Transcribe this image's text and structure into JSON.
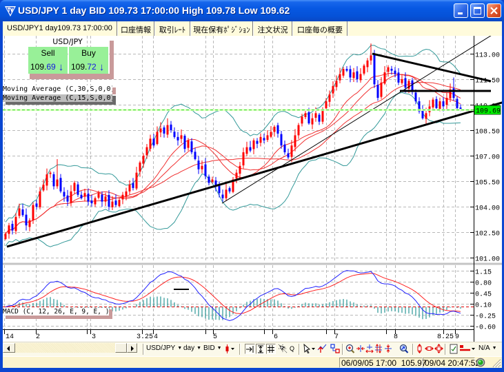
{
  "window": {
    "title": "USD/JPY 1 day BID 109.73 17:00:00 High 109.78 Low 109.62",
    "app_icon": "fx-logo-icon",
    "controls": [
      "minimize-icon",
      "maximize-icon",
      "close-icon"
    ]
  },
  "tabs": [
    {
      "label": "USD/JPY1 day109.73 17:00:00",
      "active": true
    },
    {
      "label": "口座情報",
      "active": false
    },
    {
      "label": "取引ﾚｰﾄ",
      "active": false
    },
    {
      "label": "現在保有ﾎﾟｼﾞｼｮﾝ",
      "active": false
    },
    {
      "label": "注文状況",
      "active": false
    },
    {
      "label": "口座毎の概要",
      "active": false
    }
  ],
  "quote_panel": {
    "symbol": "USD/JPY",
    "sell": {
      "label": "Sell",
      "price_big": "109.",
      "price_pips": "69",
      "arrow": "↓",
      "direction": "down"
    },
    "buy": {
      "label": "Buy",
      "price_big": "109.",
      "price_pips": "72",
      "arrow": "↓",
      "direction": "down"
    }
  },
  "legends": {
    "ma30": "Moving Average (C,30,S,0,0)",
    "ma15": "Moving Average (C,15,S,0,0)",
    "macd": "MACD (C, 12, 26, E, 9, E, )"
  },
  "price_axis": {
    "ticks": [
      "113.00",
      "111.50",
      "110.00",
      "108.50",
      "107.00",
      "105.50",
      "104.00",
      "102.50",
      "101.00"
    ],
    "current_price": "109.69"
  },
  "macd_axis": {
    "ticks": [
      "1.15",
      "0.80",
      "0.45",
      "0.10",
      "-0.25",
      "-0.60"
    ]
  },
  "time_axis": {
    "labels": [
      {
        "text": "14",
        "at": -0.2
      },
      {
        "text": "2",
        "at": 8.6
      },
      {
        "text": "3",
        "at": 24.8
      },
      {
        "text": "3.25",
        "at": 37.8
      },
      {
        "text": "4",
        "at": 42.8
      },
      {
        "text": "5",
        "at": 60
      },
      {
        "text": "6",
        "at": 77.6
      },
      {
        "text": "7",
        "at": 95.2
      },
      {
        "text": "8",
        "at": 112.4
      },
      {
        "text": "8.25",
        "at": 125
      },
      {
        "text": "9",
        "at": 130.2
      }
    ],
    "ticks": [
      -0.4,
      8.8,
      23.6,
      24.6,
      39.6,
      42.8,
      58,
      60.2,
      75,
      77.4,
      93,
      95.4,
      110.4,
      113,
      127,
      130.4
    ]
  },
  "toolbar": {
    "scroll_left_icon": "arrow-left-icon",
    "scroll_right_icon": "arrow-right-icon",
    "symbol_select": "USD/JPY",
    "timeframe_select": "day",
    "price_select": "BID",
    "chart_type_icon": "candlestick-icon",
    "quote_button": "Q",
    "na_select": "N/A",
    "caret": "▼"
  },
  "status_bar": {
    "bar_time": "06/09/05 17:00",
    "bar_price": "105.97",
    "clock": "09/04 20:47:52",
    "connection": "connected"
  },
  "colors": {
    "bull": "#ff0000",
    "bear": "#0000ff",
    "moving_average": "#f03030",
    "bollinger": "#339999",
    "macd": "#2020ff",
    "signal": "#ff2020",
    "histogram": "#3a9d9d",
    "grid": "#b8b8b8",
    "current_line": "#22dd22",
    "current_tag": "#00ee00",
    "trendline": "#000000",
    "zero_line": "#dd0000"
  },
  "chart_data": {
    "type": "candlestick",
    "title": "USD/JPY 1 day BID",
    "symbol": "USD/JPY",
    "timeframe": "1 day",
    "price_side": "BID",
    "last": {
      "bid": 109.73,
      "time": "17:00:00",
      "high": 109.78,
      "low": 109.62
    },
    "x_labels": [
      "14",
      "2",
      "3",
      "3.25",
      "4",
      "5",
      "6",
      "7",
      "8",
      "8.25",
      "9"
    ],
    "price_pane": {
      "ylim": [
        100.72,
        114.05
      ],
      "ticks": [
        113.0,
        111.5,
        110.0,
        108.5,
        107.0,
        105.5,
        104.0,
        102.5,
        101.0
      ],
      "grid": true
    },
    "candles": {
      "close": [
        102.4,
        102.9,
        102.6,
        103.4,
        103.9,
        103.5,
        102.9,
        103.2,
        104.1,
        104.0,
        104.9,
        105.3,
        105.9,
        106.0,
        105.2,
        105.6,
        104.9,
        104.6,
        104.3,
        104.9,
        105.4,
        104.7,
        104.5,
        104.8,
        104.3,
        104.2,
        104.5,
        104.8,
        104.3,
        104.6,
        104.0,
        104.3,
        104.1,
        104.4,
        104.7,
        104.9,
        105.3,
        105.1,
        106.0,
        106.6,
        107.0,
        107.5,
        108.0,
        107.6,
        108.4,
        108.6,
        108.3,
        108.8,
        108.5,
        108.1,
        107.9,
        108.2,
        107.4,
        107.9,
        107.2,
        106.8,
        106.2,
        106.4,
        105.8,
        105.4,
        105.6,
        105.2,
        104.8,
        104.5,
        105.0,
        104.9,
        105.6,
        106.0,
        106.4,
        107.2,
        107.5,
        107.3,
        107.9,
        107.7,
        108.1,
        107.9,
        108.2,
        108.4,
        108.7,
        108.3,
        107.6,
        107.2,
        106.9,
        107.6,
        108.2,
        108.8,
        109.3,
        109.5,
        108.9,
        109.2,
        109.5,
        109.0,
        109.7,
        110.2,
        110.6,
        111.1,
        111.4,
        111.8,
        112.1,
        112.0,
        111.6,
        111.9,
        111.5,
        111.8,
        112.3,
        112.6,
        112.9,
        111.2,
        110.4,
        111.3,
        111.9,
        112.2,
        112.0,
        111.8,
        111.3,
        111.5,
        111.0,
        111.4,
        110.8,
        110.2,
        109.6,
        109.2,
        109.5,
        109.9,
        110.3,
        109.8,
        110.2,
        109.9,
        110.4,
        110.9,
        110.4,
        109.8,
        109.7
      ],
      "high_overrides": {
        "15": 106.8,
        "47": 109.2,
        "106": 113.6,
        "130": 111.6
      }
    },
    "indicators": {
      "sma": [
        15,
        30
      ],
      "bollinger": {
        "period": 20,
        "k": 2
      },
      "macd": {
        "fast": 12,
        "slow": 26,
        "signal": 9
      }
    },
    "trendlines": [
      {
        "i1": 0.4,
        "p1": 101.65,
        "i2": 144.6,
        "p2": 110.16,
        "width": 3
      },
      {
        "i1": 62.8,
        "p1": 104.2,
        "i2": 144.6,
        "p2": 114.54,
        "width": 1
      },
      {
        "i1": 106.4,
        "p1": 113.0,
        "i2": 140.8,
        "p2": 111.38,
        "width": 3
      },
      {
        "i1": 114.4,
        "p1": 110.81,
        "i2": 140.8,
        "p2": 110.81,
        "width": 3
      }
    ],
    "current_price_line": 109.69,
    "macd_pane": {
      "ylim": [
        -0.71,
        1.325
      ],
      "ticks": [
        1.15,
        0.8,
        0.45,
        0.1,
        -0.25,
        -0.6
      ],
      "zero_line": 0,
      "annotations": [
        {
          "type": "segment",
          "i1": 48.8,
          "v1": 0.56,
          "i2": 53.2,
          "v2": 0.56
        }
      ]
    }
  }
}
